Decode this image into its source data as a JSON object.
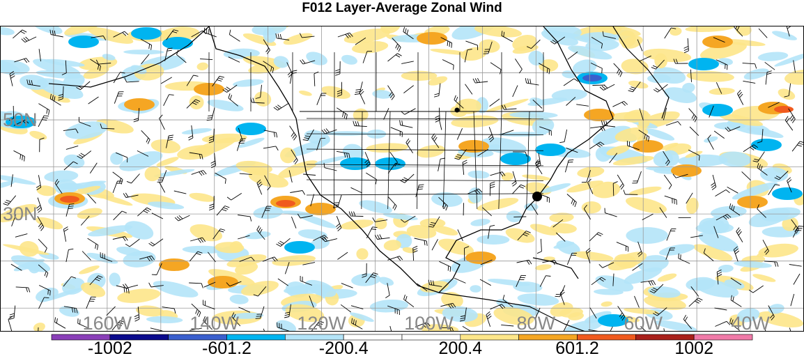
{
  "title": "F012 Layer-Average Zonal Wind",
  "map": {
    "projection": "plate-carree",
    "lon_range": [
      -180,
      -30
    ],
    "lat_range": [
      5,
      70
    ],
    "lat_labels": [
      "50N",
      "30N"
    ],
    "lon_labels": [
      "160W",
      "140W",
      "120W",
      "100W",
      "80W",
      "60W",
      "40W"
    ],
    "gridline_color": "#999999",
    "label_color": "#888888",
    "markers": [
      {
        "name": "station-dot-large",
        "label": ""
      },
      {
        "name": "station-dot-small",
        "label": ""
      }
    ]
  },
  "colorbar": {
    "tick_labels": [
      "-1002",
      "-601.2",
      "-200.4",
      "200.4",
      "601.2",
      "1002"
    ],
    "colors": [
      "#8a3fb8",
      "#0a0a8c",
      "#3a5fcd",
      "#00b4f0",
      "#b4e4f8",
      "#ffffff",
      "#ffffff",
      "#fde68a",
      "#f5a623",
      "#f05a1e",
      "#a8201a",
      "#f07aa8"
    ]
  },
  "chart_data": {
    "type": "heatmap",
    "title": "F012 Layer-Average Zonal Wind",
    "levels": [
      -1002,
      -801.6,
      -601.2,
      -400.8,
      -200.4,
      0,
      200.4,
      400.8,
      601.2,
      801.6,
      1002
    ],
    "colors": [
      "#8a3fb8",
      "#0a0a8c",
      "#3a5fcd",
      "#00b4f0",
      "#b4e4f8",
      "#ffffff",
      "#ffffff",
      "#fde68a",
      "#f5a623",
      "#f05a1e",
      "#a8201a",
      "#f07aa8"
    ],
    "xlim": [
      -180,
      -30
    ],
    "ylim": [
      5,
      70
    ]
  }
}
